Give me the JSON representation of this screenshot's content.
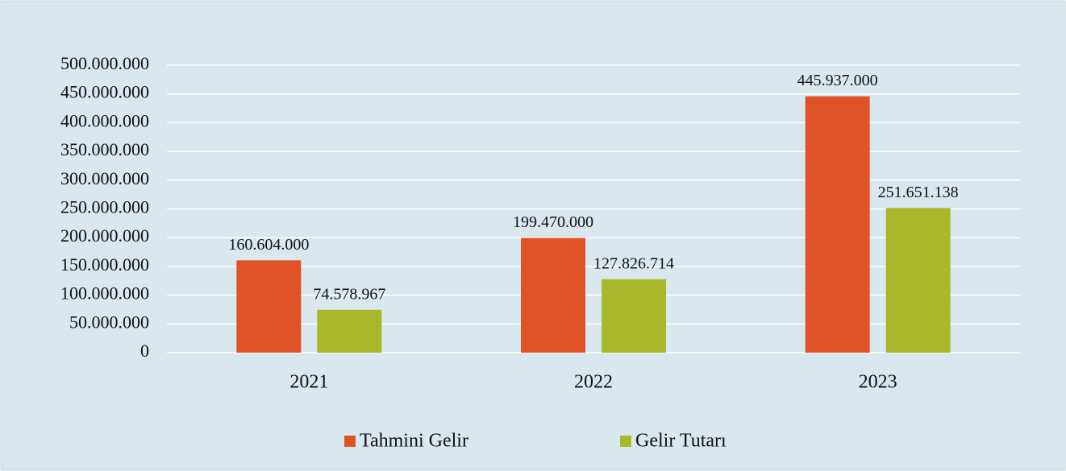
{
  "chart_data": {
    "type": "bar",
    "categories": [
      "2021",
      "2022",
      "2023"
    ],
    "series": [
      {
        "name": "Tahmini Gelir",
        "color": "#e05327",
        "values": [
          160604000,
          199470000,
          445937000
        ],
        "value_labels": [
          "160.604.000",
          "199.470.000",
          "445.937.000"
        ]
      },
      {
        "name": "Gelir Tutarı",
        "color": "#a8b82a",
        "values": [
          74578967,
          127826714,
          251651138
        ],
        "value_labels": [
          "74.578.967",
          "127.826.714",
          "251.651.138"
        ]
      }
    ],
    "ylim": [
      0,
      500000000
    ],
    "yticks": [
      {
        "value": 0,
        "label": "0"
      },
      {
        "value": 50000000,
        "label": "50.000.000"
      },
      {
        "value": 100000000,
        "label": "100.000.000"
      },
      {
        "value": 150000000,
        "label": "150.000.000"
      },
      {
        "value": 200000000,
        "label": "200.000.000"
      },
      {
        "value": 250000000,
        "label": "250.000.000"
      },
      {
        "value": 300000000,
        "label": "300.000.000"
      },
      {
        "value": 350000000,
        "label": "350.000.000"
      },
      {
        "value": 400000000,
        "label": "400.000.000"
      },
      {
        "value": 450000000,
        "label": "450.000.000"
      },
      {
        "value": 500000000,
        "label": "500.000.000"
      }
    ],
    "grid": true,
    "legend": "bottom"
  }
}
